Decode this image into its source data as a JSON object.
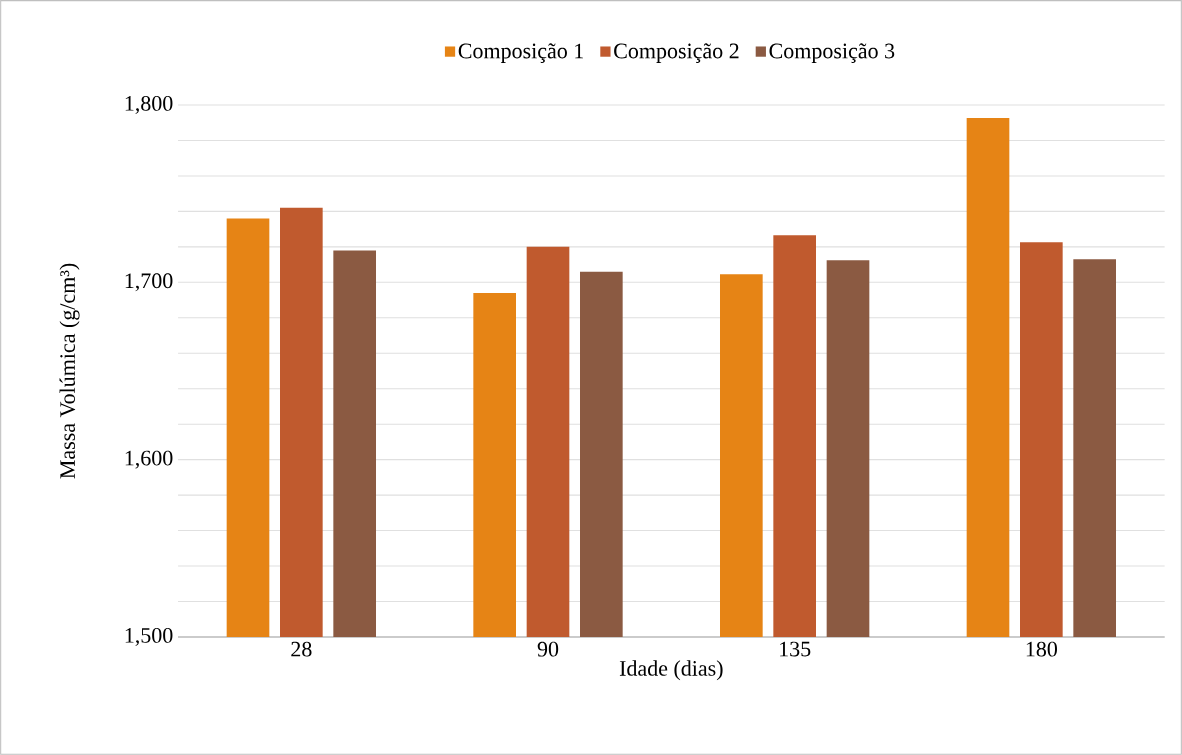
{
  "chart_data": {
    "type": "bar",
    "xlabel": "Idade (dias)",
    "ylabel": "Massa Volúmica (g/cm³)",
    "categories": [
      "28",
      "90",
      "135",
      "180"
    ],
    "series": [
      {
        "name": "Composição 1",
        "color": "#e68415",
        "values": [
          1736,
          1694,
          1704.5,
          1792.7
        ]
      },
      {
        "name": "Composição 2",
        "color": "#c05a2e",
        "values": [
          1742,
          1720,
          1726.6,
          1722.6
        ]
      },
      {
        "name": "Composição 3",
        "color": "#8b5a42",
        "values": [
          1718,
          1706,
          1712.4,
          1713
        ]
      }
    ],
    "ylim": [
      1500,
      1800
    ],
    "yticks": [
      {
        "value": 1500,
        "label": "1,500"
      },
      {
        "value": 1520,
        "label": null
      },
      {
        "value": 1540,
        "label": null
      },
      {
        "value": 1560,
        "label": null
      },
      {
        "value": 1580,
        "label": null
      },
      {
        "value": 1600,
        "label": "1,600"
      },
      {
        "value": 1620,
        "label": null
      },
      {
        "value": 1640,
        "label": null
      },
      {
        "value": 1660,
        "label": null
      },
      {
        "value": 1680,
        "label": null
      },
      {
        "value": 1700,
        "label": "1,700"
      },
      {
        "value": 1720,
        "label": null
      },
      {
        "value": 1740,
        "label": null
      },
      {
        "value": 1760,
        "label": null
      },
      {
        "value": 1780,
        "label": null
      },
      {
        "value": 1800,
        "label": "1,800"
      }
    ],
    "grid": "y",
    "legend": "top"
  }
}
